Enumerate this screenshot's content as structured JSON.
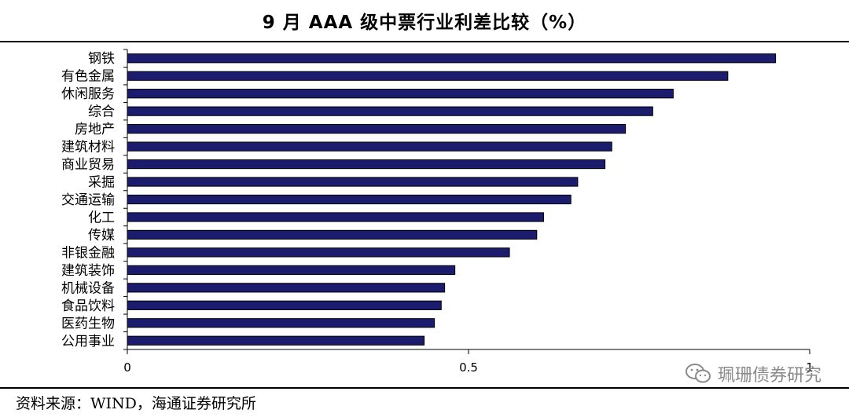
{
  "title": "9 月 AAA 级中票行业利差比较（%）",
  "source": "资料来源：WIND，海通证券研究所",
  "watermark": "珮珊债券研究",
  "colors": {
    "bar_fill": "#1c1c6e",
    "bar_stroke": "#000000",
    "axis": "#000000"
  },
  "chart_data": {
    "type": "bar",
    "orientation": "horizontal",
    "title": "9 月 AAA 级中票行业利差比较（%）",
    "categories": [
      "钢铁",
      "有色金属",
      "休闲服务",
      "综合",
      "房地产",
      "建筑材料",
      "商业贸易",
      "采掘",
      "交通运输",
      "化工",
      "传媒",
      "非银金融",
      "建筑装饰",
      "机械设备",
      "食品饮料",
      "医药生物",
      "公用事业"
    ],
    "values": [
      0.95,
      0.88,
      0.8,
      0.77,
      0.73,
      0.71,
      0.7,
      0.66,
      0.65,
      0.61,
      0.6,
      0.56,
      0.48,
      0.465,
      0.46,
      0.45,
      0.435
    ],
    "xlim": [
      0,
      1
    ],
    "xticks": [
      0,
      0.5,
      1
    ],
    "xtick_labels": [
      "0",
      "0.5",
      "1"
    ],
    "xlabel": "",
    "ylabel": "",
    "grid": false,
    "legend": "none"
  }
}
